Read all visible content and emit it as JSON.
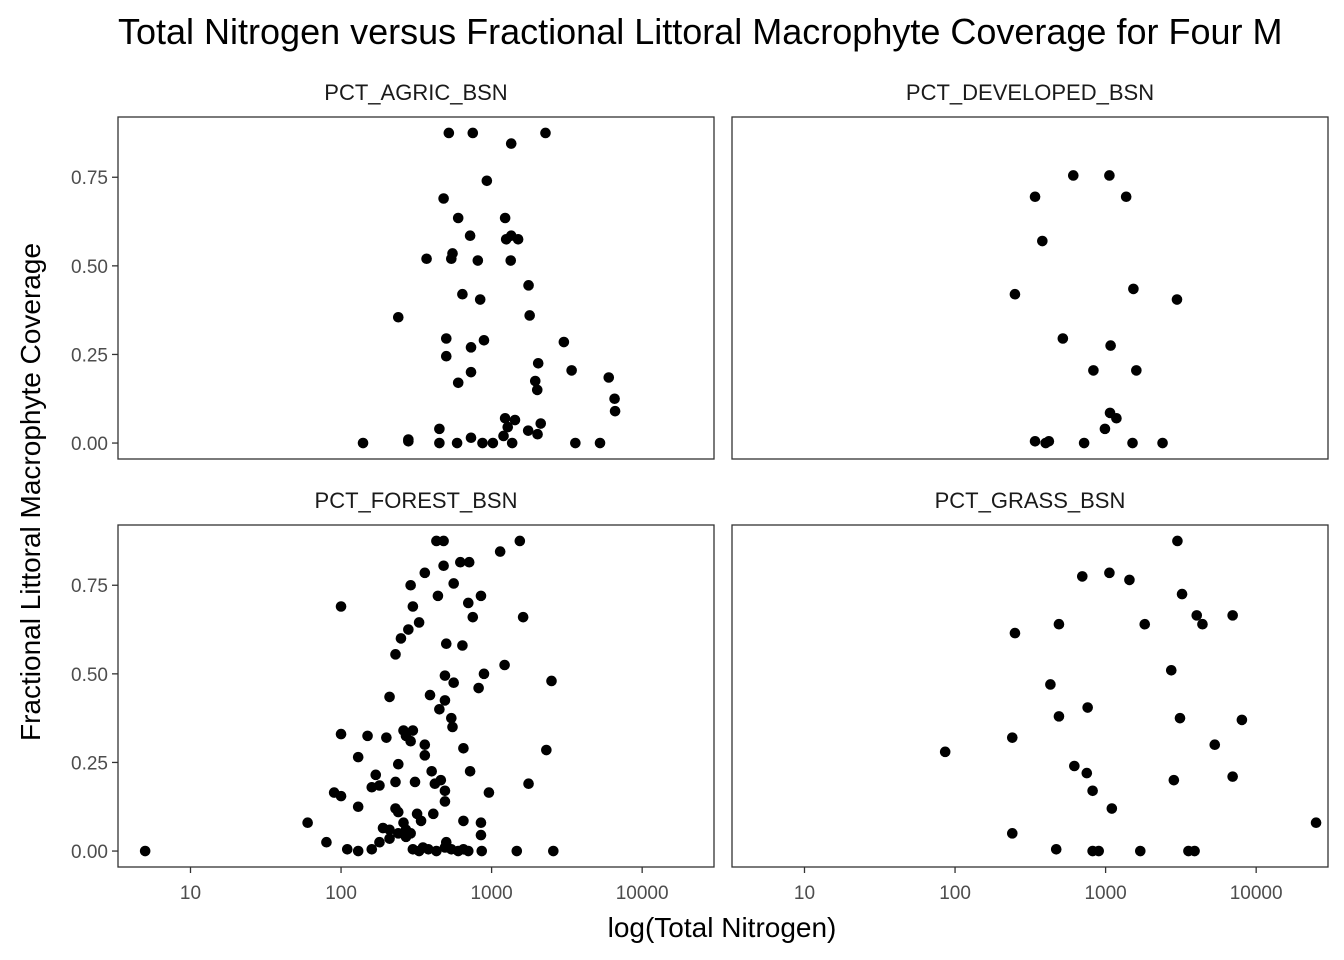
{
  "chart_data": {
    "type": "scatter",
    "title": "Total Nitrogen versus Fractional Littoral Macrophyte Coverage for Four M",
    "xlabel": "log(Total Nitrogen)",
    "ylabel": "Fractional Littoral Macrophyte Coverage",
    "x_scale": "log10",
    "xlim": [
      3.3,
      30000
    ],
    "ylim": [
      -0.045,
      0.92
    ],
    "x_ticks": [
      10,
      100,
      1000,
      10000
    ],
    "x_tick_labels": [
      "10",
      "100",
      "1000",
      "10000"
    ],
    "y_ticks": [
      0,
      0.25,
      0.5,
      0.75
    ],
    "y_tick_labels": [
      "0.00",
      "0.25",
      "0.50",
      "0.75"
    ],
    "grid": false,
    "legend": "none",
    "point_color": "#000000",
    "facets": [
      {
        "name": "PCT_AGRIC_BSN",
        "points": [
          [
            520,
            0.875
          ],
          [
            750,
            0.875
          ],
          [
            2280,
            0.875
          ],
          [
            1350,
            0.845
          ],
          [
            930,
            0.74
          ],
          [
            480,
            0.69
          ],
          [
            600,
            0.635
          ],
          [
            1230,
            0.635
          ],
          [
            1350,
            0.585
          ],
          [
            720,
            0.585
          ],
          [
            1250,
            0.575
          ],
          [
            1500,
            0.575
          ],
          [
            550,
            0.535
          ],
          [
            540,
            0.52
          ],
          [
            370,
            0.52
          ],
          [
            810,
            0.515
          ],
          [
            1340,
            0.515
          ],
          [
            1760,
            0.445
          ],
          [
            640,
            0.42
          ],
          [
            840,
            0.405
          ],
          [
            240,
            0.355
          ],
          [
            1790,
            0.36
          ],
          [
            500,
            0.295
          ],
          [
            890,
            0.29
          ],
          [
            730,
            0.27
          ],
          [
            3020,
            0.285
          ],
          [
            500,
            0.245
          ],
          [
            2040,
            0.225
          ],
          [
            6000,
            0.185
          ],
          [
            730,
            0.2
          ],
          [
            3400,
            0.205
          ],
          [
            1950,
            0.175
          ],
          [
            600,
            0.17
          ],
          [
            2010,
            0.15
          ],
          [
            6560,
            0.125
          ],
          [
            6610,
            0.09
          ],
          [
            1230,
            0.07
          ],
          [
            1430,
            0.065
          ],
          [
            1280,
            0.045
          ],
          [
            2120,
            0.055
          ],
          [
            450,
            0.04
          ],
          [
            1750,
            0.035
          ],
          [
            2020,
            0.025
          ],
          [
            280,
            0.01
          ],
          [
            1200,
            0.02
          ],
          [
            730,
            0.015
          ],
          [
            140,
            0.0
          ],
          [
            280,
            0.005
          ],
          [
            450,
            0.0
          ],
          [
            870,
            0.0
          ],
          [
            1020,
            0.0
          ],
          [
            1370,
            0.0
          ],
          [
            3600,
            0.0
          ],
          [
            5250,
            0.0
          ],
          [
            590,
            0.0
          ]
        ]
      },
      {
        "name": "PCT_DEVELOPED_BSN",
        "points": [
          [
            610,
            0.755
          ],
          [
            1060,
            0.755
          ],
          [
            340,
            0.695
          ],
          [
            1370,
            0.695
          ],
          [
            380,
            0.57
          ],
          [
            250,
            0.42
          ],
          [
            1530,
            0.435
          ],
          [
            2980,
            0.405
          ],
          [
            520,
            0.295
          ],
          [
            1080,
            0.275
          ],
          [
            830,
            0.205
          ],
          [
            1600,
            0.205
          ],
          [
            1070,
            0.085
          ],
          [
            1180,
            0.07
          ],
          [
            990,
            0.04
          ],
          [
            340,
            0.005
          ],
          [
            400,
            0.0
          ],
          [
            420,
            0.005
          ],
          [
            720,
            0.0
          ],
          [
            1510,
            0.0
          ],
          [
            2390,
            0.0
          ]
        ]
      },
      {
        "name": "PCT_FOREST_BSN",
        "points": [
          [
            430,
            0.875
          ],
          [
            480,
            0.875
          ],
          [
            1540,
            0.875
          ],
          [
            1140,
            0.845
          ],
          [
            620,
            0.815
          ],
          [
            710,
            0.815
          ],
          [
            480,
            0.805
          ],
          [
            360,
            0.785
          ],
          [
            560,
            0.755
          ],
          [
            290,
            0.75
          ],
          [
            440,
            0.72
          ],
          [
            850,
            0.72
          ],
          [
            100,
            0.69
          ],
          [
            300,
            0.69
          ],
          [
            700,
            0.7
          ],
          [
            1620,
            0.66
          ],
          [
            750,
            0.66
          ],
          [
            330,
            0.645
          ],
          [
            280,
            0.625
          ],
          [
            500,
            0.585
          ],
          [
            640,
            0.58
          ],
          [
            250,
            0.6
          ],
          [
            230,
            0.555
          ],
          [
            1220,
            0.525
          ],
          [
            890,
            0.5
          ],
          [
            490,
            0.495
          ],
          [
            820,
            0.46
          ],
          [
            2500,
            0.48
          ],
          [
            560,
            0.475
          ],
          [
            210,
            0.435
          ],
          [
            390,
            0.44
          ],
          [
            490,
            0.425
          ],
          [
            450,
            0.4
          ],
          [
            540,
            0.375
          ],
          [
            550,
            0.35
          ],
          [
            260,
            0.34
          ],
          [
            300,
            0.34
          ],
          [
            100,
            0.33
          ],
          [
            150,
            0.325
          ],
          [
            200,
            0.32
          ],
          [
            270,
            0.325
          ],
          [
            290,
            0.31
          ],
          [
            360,
            0.3
          ],
          [
            650,
            0.29
          ],
          [
            2310,
            0.285
          ],
          [
            360,
            0.27
          ],
          [
            130,
            0.265
          ],
          [
            240,
            0.245
          ],
          [
            170,
            0.215
          ],
          [
            400,
            0.225
          ],
          [
            720,
            0.225
          ],
          [
            1760,
            0.19
          ],
          [
            90,
            0.165
          ],
          [
            160,
            0.18
          ],
          [
            180,
            0.185
          ],
          [
            230,
            0.195
          ],
          [
            310,
            0.195
          ],
          [
            420,
            0.19
          ],
          [
            460,
            0.2
          ],
          [
            960,
            0.165
          ],
          [
            100,
            0.155
          ],
          [
            130,
            0.125
          ],
          [
            230,
            0.12
          ],
          [
            240,
            0.11
          ],
          [
            320,
            0.105
          ],
          [
            410,
            0.105
          ],
          [
            490,
            0.14
          ],
          [
            490,
            0.17
          ],
          [
            60,
            0.08
          ],
          [
            190,
            0.065
          ],
          [
            210,
            0.06
          ],
          [
            260,
            0.08
          ],
          [
            270,
            0.06
          ],
          [
            340,
            0.085
          ],
          [
            650,
            0.085
          ],
          [
            850,
            0.08
          ],
          [
            80,
            0.025
          ],
          [
            110,
            0.005
          ],
          [
            130,
            0.0
          ],
          [
            160,
            0.005
          ],
          [
            180,
            0.025
          ],
          [
            210,
            0.035
          ],
          [
            240,
            0.05
          ],
          [
            270,
            0.04
          ],
          [
            290,
            0.05
          ],
          [
            300,
            0.005
          ],
          [
            330,
            0.0
          ],
          [
            350,
            0.01
          ],
          [
            380,
            0.005
          ],
          [
            430,
            0.0
          ],
          [
            490,
            0.01
          ],
          [
            500,
            0.025
          ],
          [
            540,
            0.005
          ],
          [
            600,
            0.0
          ],
          [
            650,
            0.005
          ],
          [
            700,
            0.0
          ],
          [
            860,
            0.0
          ],
          [
            850,
            0.045
          ],
          [
            1470,
            0.0
          ],
          [
            2570,
            0.0
          ],
          [
            5,
            0.0
          ]
        ]
      },
      {
        "name": "PCT_GRASS_BSN",
        "points": [
          [
            3000,
            0.875
          ],
          [
            1060,
            0.785
          ],
          [
            700,
            0.775
          ],
          [
            1440,
            0.765
          ],
          [
            3220,
            0.725
          ],
          [
            4030,
            0.665
          ],
          [
            6980,
            0.665
          ],
          [
            250,
            0.615
          ],
          [
            490,
            0.64
          ],
          [
            1820,
            0.64
          ],
          [
            4400,
            0.64
          ],
          [
            2730,
            0.51
          ],
          [
            430,
            0.47
          ],
          [
            760,
            0.405
          ],
          [
            490,
            0.38
          ],
          [
            3120,
            0.375
          ],
          [
            8040,
            0.37
          ],
          [
            86,
            0.28
          ],
          [
            240,
            0.32
          ],
          [
            5310,
            0.3
          ],
          [
            620,
            0.24
          ],
          [
            750,
            0.22
          ],
          [
            2840,
            0.2
          ],
          [
            6980,
            0.21
          ],
          [
            820,
            0.17
          ],
          [
            1100,
            0.12
          ],
          [
            25000,
            0.08
          ],
          [
            240,
            0.05
          ],
          [
            470,
            0.005
          ],
          [
            820,
            0.0
          ],
          [
            900,
            0.0
          ],
          [
            1700,
            0.0
          ],
          [
            3550,
            0.0
          ],
          [
            3900,
            0.0
          ]
        ]
      }
    ]
  }
}
